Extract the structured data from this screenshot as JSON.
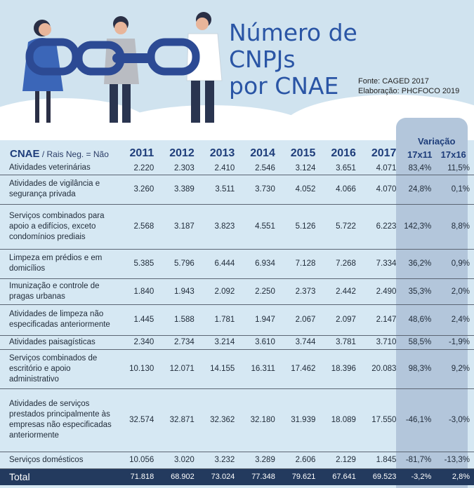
{
  "title": {
    "line1": "Número de",
    "line2": "CNPJs",
    "line3": "por CNAE"
  },
  "source": {
    "fonte": "Fonte: CAGED 2017",
    "elaboracao": "Elaboração: PHCFOCO 2019"
  },
  "header": {
    "cnae": "CNAE",
    "subtitle": " / Rais Neg. = Não",
    "years": [
      "2011",
      "2012",
      "2013",
      "2014",
      "2015",
      "2016",
      "2017"
    ],
    "variacao": "Variação",
    "var_cols": [
      "17x11",
      "17x16"
    ]
  },
  "rows": [
    {
      "name": "Atividades veterinárias",
      "values": [
        "2.220",
        "2.303",
        "2.410",
        "2.546",
        "3.124",
        "3.651",
        "4.071"
      ],
      "var": [
        "83,4%",
        "11,5%"
      ]
    },
    {
      "name": "Atividades de vigilância e segurança privada",
      "values": [
        "3.260",
        "3.389",
        "3.511",
        "3.730",
        "4.052",
        "4.066",
        "4.070"
      ],
      "var": [
        "24,8%",
        "0,1%"
      ]
    },
    {
      "name": "Serviços combinados para apoio a edifícios, exceto condomínios prediais",
      "values": [
        "2.568",
        "3.187",
        "3.823",
        "4.551",
        "5.126",
        "5.722",
        "6.223"
      ],
      "var": [
        "142,3%",
        "8,8%"
      ]
    },
    {
      "name": "Limpeza em prédios e em domicílios",
      "values": [
        "5.385",
        "5.796",
        "6.444",
        "6.934",
        "7.128",
        "7.268",
        "7.334"
      ],
      "var": [
        "36,2%",
        "0,9%"
      ]
    },
    {
      "name": "Imunização e controle de pragas urbanas",
      "values": [
        "1.840",
        "1.943",
        "2.092",
        "2.250",
        "2.373",
        "2.442",
        "2.490"
      ],
      "var": [
        "35,3%",
        "2,0%"
      ]
    },
    {
      "name": "Atividades de limpeza não especificadas anteriormente",
      "values": [
        "1.445",
        "1.588",
        "1.781",
        "1.947",
        "2.067",
        "2.097",
        "2.147"
      ],
      "var": [
        "48,6%",
        "2,4%"
      ]
    },
    {
      "name": "Atividades paisagísticas",
      "values": [
        "2.340",
        "2.734",
        "3.214",
        "3.610",
        "3.744",
        "3.781",
        "3.710"
      ],
      "var": [
        "58,5%",
        "-1,9%"
      ]
    },
    {
      "name": "Serviços combinados de escritório e apoio administrativo",
      "values": [
        "10.130",
        "12.071",
        "14.155",
        "16.311",
        "17.462",
        "18.396",
        "20.083"
      ],
      "var": [
        "98,3%",
        "9,2%"
      ]
    },
    {
      "name": "Atividades de serviços prestados principalmente às empresas não especificadas anteriormente",
      "values": [
        "32.574",
        "32.871",
        "32.362",
        "32.180",
        "31.939",
        "18.089",
        "17.550"
      ],
      "var": [
        "-46,1%",
        "-3,0%"
      ]
    },
    {
      "name": "Serviços domésticos",
      "values": [
        "10.056",
        "3.020",
        "3.232",
        "3.289",
        "2.606",
        "2.129",
        "1.845"
      ],
      "var": [
        "-81,7%",
        "-13,3%"
      ]
    }
  ],
  "total": {
    "name": "Total",
    "values": [
      "71.818",
      "68.902",
      "73.024",
      "77.348",
      "79.621",
      "67.641",
      "69.523"
    ],
    "var": [
      "-3,2%",
      "2,8%"
    ]
  }
}
